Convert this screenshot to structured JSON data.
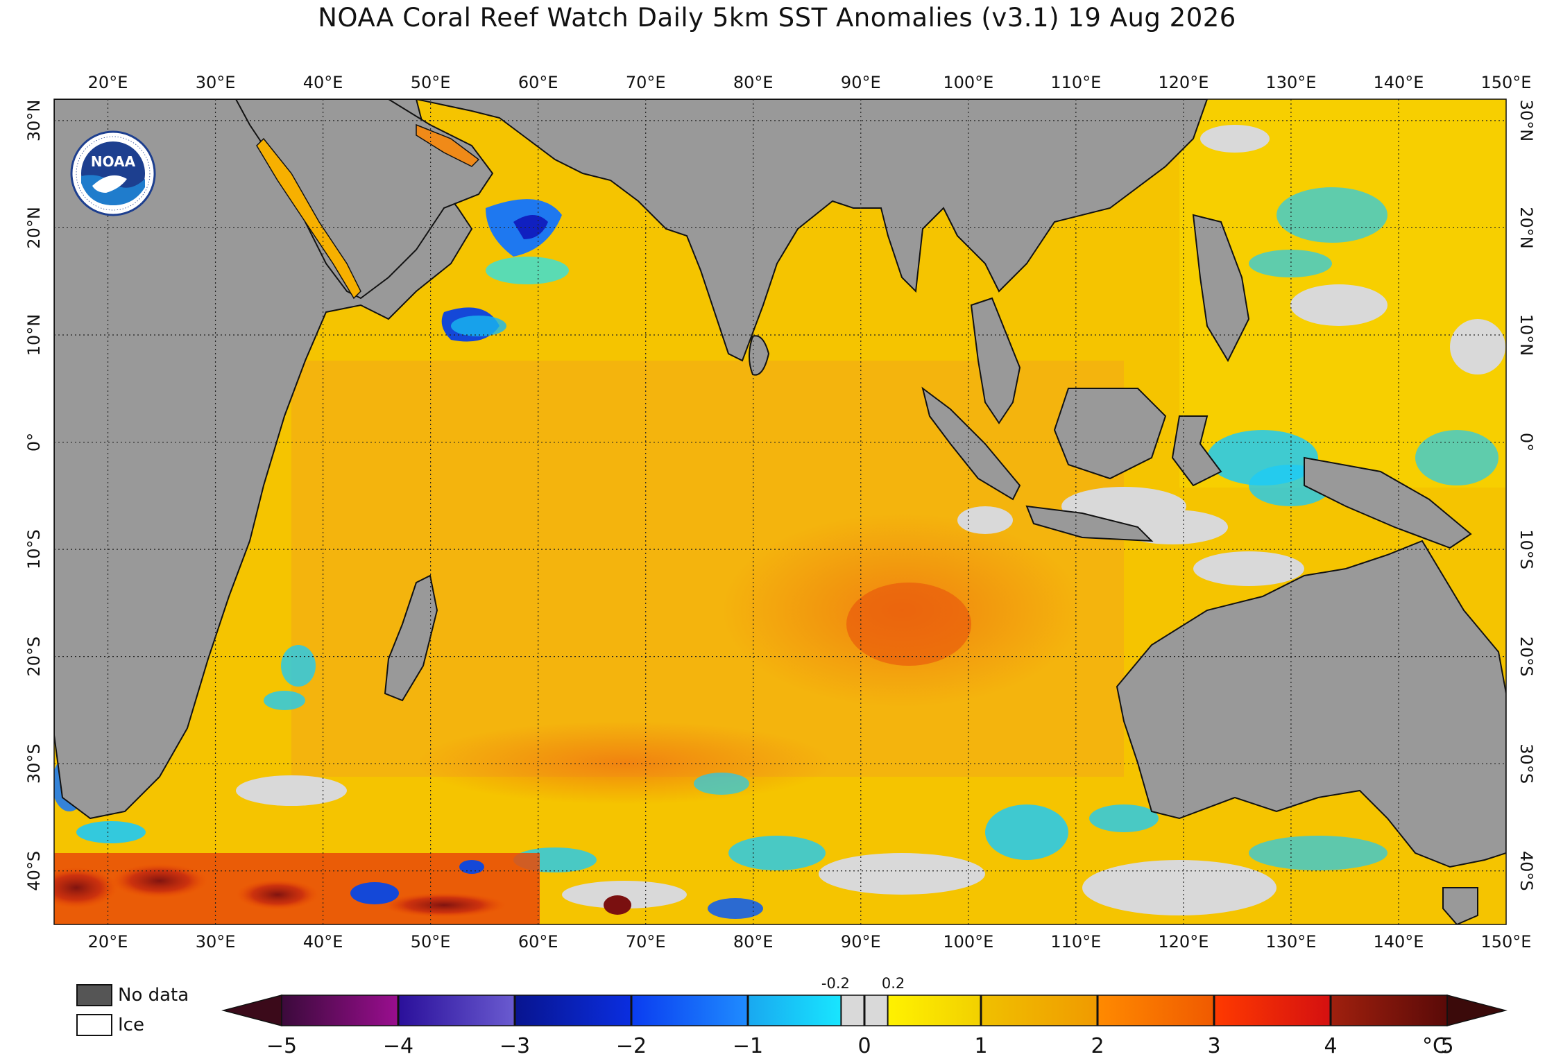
{
  "title": "NOAA Coral Reef Watch Daily 5km SST Anomalies  (v3.1)   19 Aug 2026",
  "logo": {
    "text": "NOAA",
    "ring_text": "NATIONAL OCEANIC AND ATMOSPHERIC ADMINISTRATION · U.S. DEPARTMENT OF COMMERCE",
    "icon": "noaa-logo"
  },
  "axes": {
    "lon_labels": [
      "20°E",
      "30°E",
      "40°E",
      "50°E",
      "60°E",
      "70°E",
      "80°E",
      "90°E",
      "100°E",
      "110°E",
      "120°E",
      "130°E",
      "140°E",
      "150°E"
    ],
    "lon_values": [
      20,
      30,
      40,
      50,
      60,
      70,
      80,
      90,
      100,
      110,
      120,
      130,
      140,
      150
    ],
    "lon_range": [
      15,
      150
    ],
    "lat_labels": [
      "30°N",
      "20°N",
      "10°N",
      "0°",
      "10°S",
      "20°S",
      "30°S",
      "40°S"
    ],
    "lat_values": [
      30,
      20,
      10,
      0,
      -10,
      -20,
      -30,
      -40
    ],
    "lat_range": [
      -45,
      32
    ]
  },
  "legend": {
    "no_data_label": "No data",
    "ice_label": "Ice",
    "colors": {
      "no_data": "#555555",
      "ice": "#ffffff",
      "land": "#999999"
    }
  },
  "colorbar": {
    "ticks": [
      "−5",
      "−4",
      "−3",
      "−2",
      "−1",
      "0",
      "1",
      "2",
      "3",
      "4",
      "5"
    ],
    "tick_values": [
      -5,
      -4,
      -3,
      -2,
      -1,
      0,
      1,
      2,
      3,
      4,
      5
    ],
    "small_ticks": [
      "-0.2",
      "0.2"
    ],
    "small_tick_values": [
      -0.2,
      0.2
    ],
    "unit": "°C",
    "segments": [
      {
        "from": -5,
        "to": -4,
        "c1": "#3b0a3b",
        "c2": "#9a0e8f"
      },
      {
        "from": -4,
        "to": -3,
        "c1": "#2a0f9a",
        "c2": "#6a5bd0"
      },
      {
        "from": -3,
        "to": -2,
        "c1": "#08148f",
        "c2": "#0a2ee0"
      },
      {
        "from": -2,
        "to": -1,
        "c1": "#0a3cf0",
        "c2": "#1f8cff"
      },
      {
        "from": -1,
        "to": -0.2,
        "c1": "#19a8f0",
        "c2": "#18e6ff"
      },
      {
        "from": -0.2,
        "to": 0.2,
        "c1": "#d9d9d9",
        "c2": "#d9d9d9"
      },
      {
        "from": 0.2,
        "to": 1,
        "c1": "#fff200",
        "c2": "#f2d000"
      },
      {
        "from": 1,
        "to": 2,
        "c1": "#f0c000",
        "c2": "#f09a00"
      },
      {
        "from": 2,
        "to": 3,
        "c1": "#ff8a00",
        "c2": "#f05a00"
      },
      {
        "from": 3,
        "to": 4,
        "c1": "#ff3a00",
        "c2": "#d41010"
      },
      {
        "from": 4,
        "to": 5,
        "c1": "#a0200e",
        "c2": "#5a0a08"
      }
    ]
  }
}
